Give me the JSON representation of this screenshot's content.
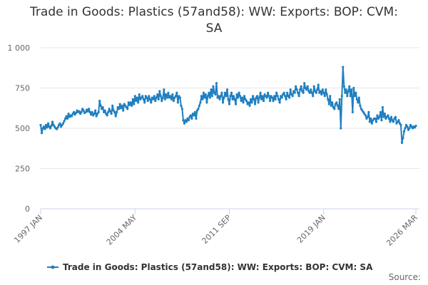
{
  "chart_data": {
    "type": "line",
    "title": "Trade in Goods: Plastics (57and58): WW: Exports: BOP: CVM: SA",
    "source": "Source:",
    "categories": [
      "1997 JAN",
      null,
      null,
      null,
      null,
      null,
      null,
      null,
      null,
      null,
      null,
      null,
      null,
      null,
      null,
      null,
      null,
      null,
      null,
      null,
      null,
      null,
      null,
      null,
      null,
      null,
      null,
      null,
      null,
      null,
      null,
      null,
      null,
      null,
      null,
      null,
      null,
      null,
      null,
      null,
      null,
      null,
      null,
      null,
      null,
      null,
      null,
      null,
      null,
      null,
      null,
      null,
      null,
      null,
      null,
      null,
      null,
      null,
      null,
      null,
      null,
      null,
      null,
      null,
      null,
      null,
      null,
      null,
      null,
      null,
      null,
      null,
      null,
      null,
      null,
      null,
      null,
      null,
      null,
      null,
      null,
      null,
      null,
      null,
      null,
      null,
      null,
      null,
      "2004 MAY",
      null,
      null,
      null,
      null,
      null,
      null,
      null,
      null,
      null,
      null,
      null,
      null,
      null,
      null,
      null,
      null,
      null,
      null,
      null,
      null,
      null,
      null,
      null,
      null,
      null,
      null,
      null,
      null,
      null,
      null,
      null,
      null,
      null,
      null,
      null,
      null,
      null,
      null,
      null,
      null,
      null,
      null,
      null,
      null,
      null,
      null,
      null,
      null,
      null,
      null,
      null,
      null,
      null,
      null,
      null,
      null,
      null,
      null,
      null,
      null,
      null,
      null,
      null,
      null,
      null,
      null,
      null,
      null,
      null,
      null,
      null,
      null,
      null,
      null,
      null,
      null,
      null,
      null,
      null,
      null,
      null,
      null,
      null,
      null,
      null,
      null,
      null,
      "2011 SEP",
      null,
      null,
      null,
      null,
      null,
      null,
      null,
      null,
      null,
      null,
      null,
      null,
      null,
      null,
      null,
      null,
      null,
      null,
      null,
      null,
      null,
      null,
      null,
      null,
      null,
      null,
      null,
      null,
      null,
      null,
      null,
      null,
      null,
      null,
      null,
      null,
      null,
      null,
      null,
      null,
      null,
      null,
      null,
      null,
      null,
      null,
      null,
      null,
      null,
      null,
      null,
      null,
      null,
      null,
      null,
      null,
      null,
      null,
      null,
      null,
      null,
      null,
      null,
      null,
      null,
      null,
      null,
      null,
      null,
      null,
      null,
      null,
      null,
      null,
      null,
      null,
      null,
      null,
      null,
      null,
      null,
      null,
      null,
      null,
      null,
      null,
      null,
      "2019 JAN",
      null,
      null,
      null,
      null,
      null,
      null,
      null,
      null,
      null,
      null,
      null,
      null,
      null,
      null,
      null,
      null,
      null,
      null,
      null,
      null,
      null,
      null,
      null,
      null,
      null,
      null,
      null,
      null,
      null,
      null,
      null,
      null,
      null,
      null,
      null,
      null,
      null,
      null,
      null,
      null,
      null,
      null,
      null,
      null,
      null,
      null,
      null,
      null,
      null,
      null,
      null,
      null,
      null,
      null,
      null,
      null,
      null,
      null,
      null,
      null,
      null,
      null,
      null,
      null,
      null,
      null,
      null,
      null,
      null,
      null,
      null,
      null,
      null,
      null,
      null,
      null,
      null,
      null,
      null,
      null,
      null,
      null,
      null,
      null,
      null,
      "2026 MAR"
    ],
    "series": [
      {
        "name": "Trade in Goods: Plastics (57and58): WW: Exports: BOP: CVM: SA",
        "color": "#1f7fc0",
        "values": [
          520,
          470,
          500,
          510,
          495,
          520,
          505,
          530,
          510,
          500,
          515,
          540,
          520,
          510,
          500,
          495,
          505,
          520,
          530,
          510,
          520,
          530,
          545,
          560,
          575,
          560,
          590,
          570,
          580,
          575,
          590,
          600,
          585,
          595,
          610,
          600,
          605,
          590,
          600,
          620,
          610,
          595,
          600,
          615,
          605,
          620,
          600,
          585,
          600,
          580,
          590,
          610,
          575,
          590,
          600,
          670,
          640,
          620,
          630,
          600,
          610,
          590,
          580,
          600,
          620,
          605,
          590,
          640,
          610,
          600,
          575,
          600,
          630,
          620,
          650,
          625,
          640,
          610,
          650,
          640,
          630,
          620,
          660,
          645,
          660,
          640,
          680,
          650,
          700,
          670,
          690,
          660,
          710,
          680,
          690,
          700,
          680,
          660,
          700,
          690,
          670,
          700,
          680,
          660,
          690,
          680,
          700,
          670,
          690,
          710,
          680,
          730,
          700,
          670,
          690,
          740,
          680,
          710,
          690,
          720,
          690,
          700,
          680,
          710,
          670,
          690,
          700,
          720,
          660,
          700,
          690,
          640,
          620,
          550,
          530,
          550,
          540,
          560,
          550,
          570,
          580,
          560,
          590,
          580,
          600,
          560,
          610,
          620,
          640,
          660,
          700,
          680,
          720,
          690,
          710,
          660,
          700,
          720,
          690,
          740,
          700,
          760,
          720,
          710,
          780,
          690,
          700,
          680,
          700,
          720,
          660,
          690,
          720,
          700,
          740,
          680,
          650,
          700,
          720,
          680,
          700,
          680,
          650,
          710,
          690,
          720,
          700,
          670,
          690,
          660,
          700,
          680,
          670,
          650,
          660,
          640,
          680,
          660,
          700,
          680,
          650,
          690,
          700,
          660,
          690,
          720,
          680,
          700,
          670,
          710,
          700,
          690,
          720,
          700,
          670,
          700,
          690,
          670,
          700,
          680,
          720,
          700,
          680,
          660,
          700,
          690,
          710,
          720,
          700,
          680,
          720,
          700,
          690,
          740,
          710,
          700,
          730,
          720,
          760,
          740,
          720,
          700,
          740,
          760,
          730,
          720,
          780,
          750,
          740,
          760,
          730,
          720,
          740,
          720,
          700,
          760,
          730,
          720,
          740,
          770,
          720,
          730,
          710,
          740,
          720,
          700,
          740,
          710,
          680,
          650,
          700,
          640,
          660,
          630,
          620,
          650,
          660,
          640,
          620,
          680,
          500,
          700,
          880,
          760,
          720,
          740,
          700,
          730,
          760,
          700,
          740,
          600,
          750,
          700,
          720,
          680,
          660,
          690,
          640,
          620,
          610,
          600,
          590,
          580,
          560,
          570,
          600,
          540,
          560,
          530,
          550,
          560,
          560,
          540,
          580,
          560,
          570,
          600,
          550,
          630,
          570,
          590,
          560,
          570,
          580,
          560,
          540,
          570,
          550,
          540,
          560,
          570,
          530,
          540,
          550,
          530,
          520,
          410,
          440,
          480,
          500,
          520,
          510,
          490,
          500,
          520,
          510,
          500,
          510,
          505,
          515
        ]
      }
    ],
    "ylim": [
      0,
      1000
    ],
    "yticks": [
      0,
      250,
      500,
      750,
      {
        "value": 1000,
        "label": "1 000"
      }
    ],
    "grid": true,
    "legend": "bottom"
  }
}
